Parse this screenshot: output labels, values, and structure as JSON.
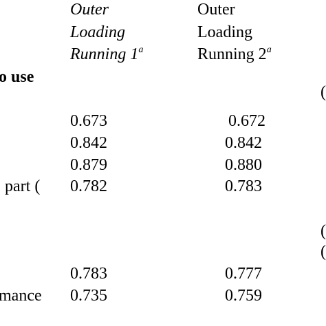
{
  "header": {
    "col1": {
      "line1": "Outer",
      "line2": "Loading",
      "line3": "Running 1",
      "sup": "a"
    },
    "col2": {
      "line1": "Outer",
      "line2": "Loading",
      "line3": "Running 2",
      "sup": "a"
    }
  },
  "section_heading": "o use",
  "row_labels": {
    "row4": "part (",
    "row6": "mance"
  },
  "rows": [
    {
      "c1": "0.673",
      "c2": "0.672"
    },
    {
      "c1": "0.842",
      "c2": "0.842"
    },
    {
      "c1": "0.879",
      "c2": "0.880"
    },
    {
      "c1": "0.782",
      "c2": "0.783"
    },
    {
      "c1": "0.783",
      "c2": "0.777"
    },
    {
      "c1": "0.735",
      "c2": "0.759"
    }
  ],
  "right_edge_marks": [
    "(",
    "(",
    "("
  ]
}
